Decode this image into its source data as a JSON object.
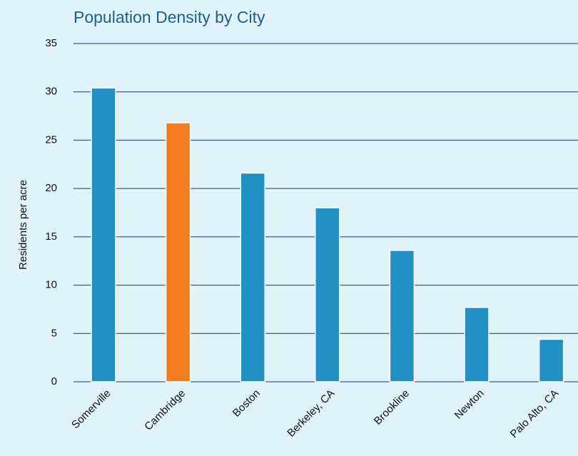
{
  "chart_data": {
    "type": "bar",
    "title": "Population Density by City",
    "y_label": "Residents per acre",
    "categories": [
      "Somerville",
      "Cambridge",
      "Boston",
      "Berkeley, CA",
      "Brookline",
      "Newton",
      "Palo Alto, CA"
    ],
    "values": [
      30.4,
      26.8,
      21.6,
      18.0,
      13.6,
      7.7,
      4.4
    ],
    "colors": [
      "#2190c4",
      "#f47c20",
      "#2190c4",
      "#2190c4",
      "#2190c4",
      "#2190c4",
      "#2190c4"
    ],
    "ylim": [
      0,
      35
    ],
    "yticks": [
      0,
      5,
      10,
      15,
      20,
      25,
      30,
      35
    ],
    "grid": true
  }
}
